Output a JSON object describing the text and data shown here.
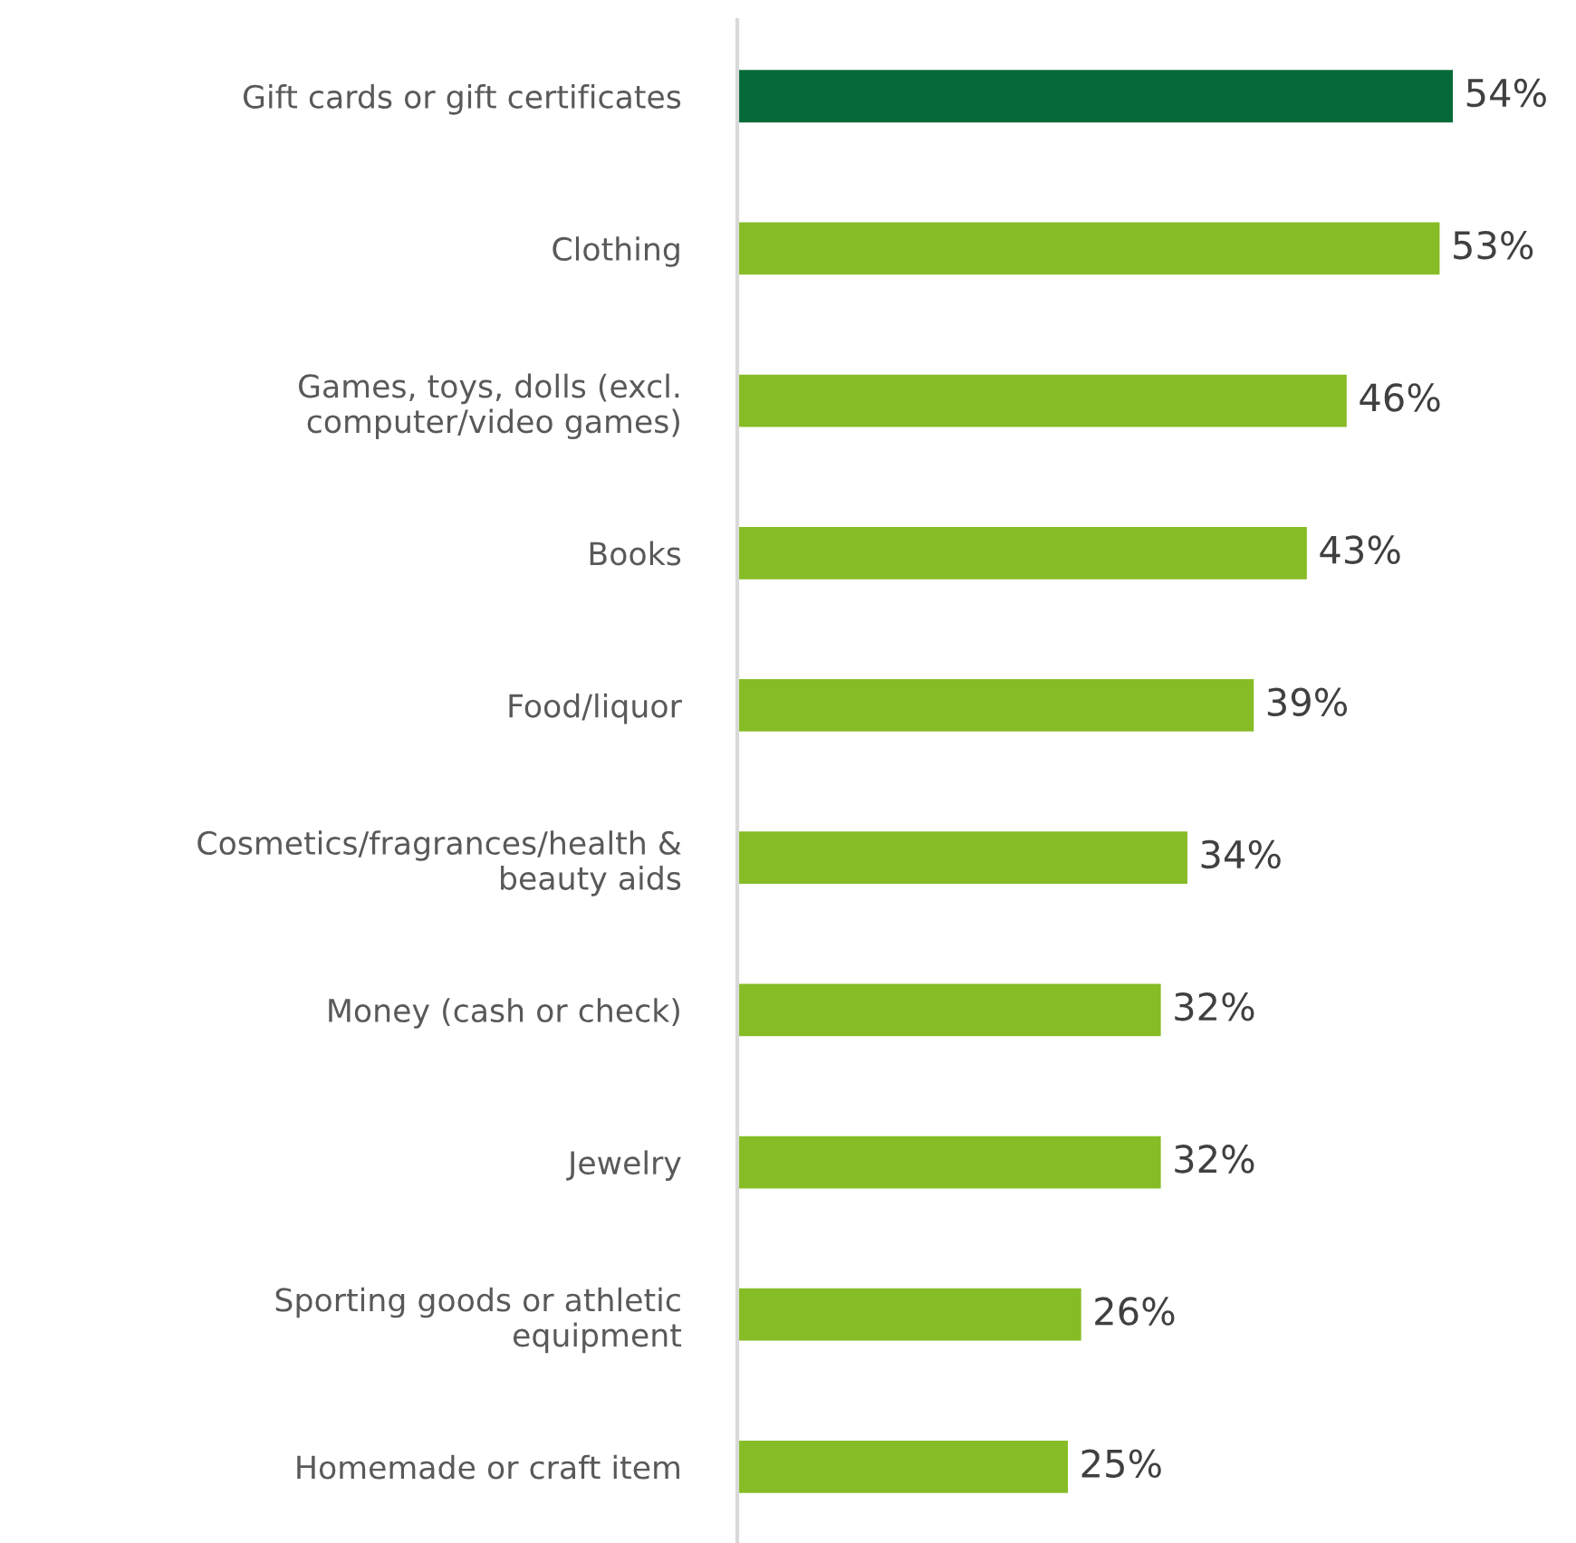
{
  "chart_data": {
    "type": "bar",
    "orientation": "horizontal",
    "categories": [
      "Gift cards or gift certificates",
      "Clothing",
      "Games, toys, dolls (excl.\ncomputer/video games)",
      "Books",
      "Food/liquor",
      "Cosmetics/fragrances/health &\nbeauty aids",
      "Money (cash or check)",
      "Jewelry",
      "Sporting goods or athletic\nequipment",
      "Homemade or craft item"
    ],
    "values": [
      54,
      53,
      46,
      43,
      39,
      34,
      32,
      32,
      26,
      25
    ],
    "colors": [
      "#046a38",
      "#86bc25",
      "#86bc25",
      "#86bc25",
      "#86bc25",
      "#86bc25",
      "#86bc25",
      "#86bc25",
      "#86bc25",
      "#86bc25"
    ],
    "value_labels": [
      "54%",
      "53%",
      "46%",
      "43%",
      "39%",
      "34%",
      "32%",
      "32%",
      "26%",
      "25%"
    ],
    "grid": false,
    "legend": false
  }
}
